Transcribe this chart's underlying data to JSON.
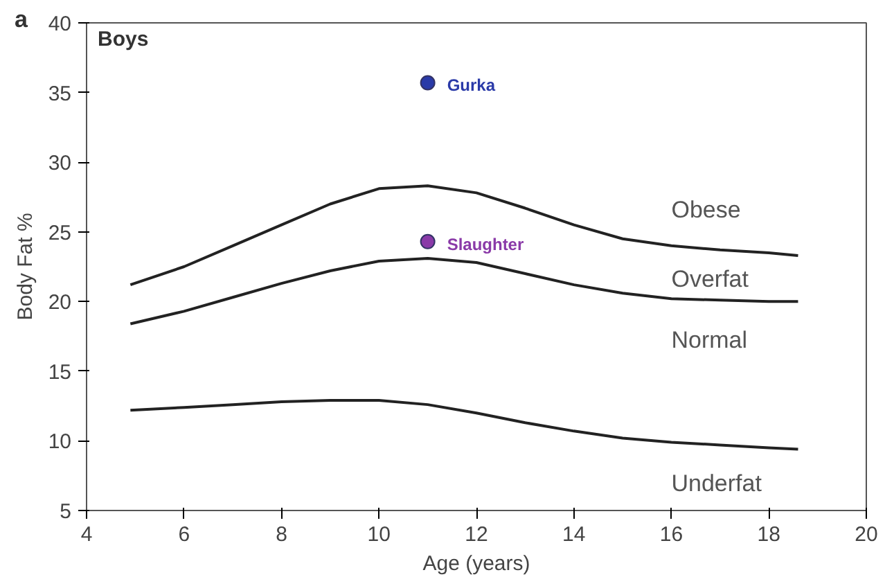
{
  "chart_data": {
    "type": "line",
    "xlabel": "Age (years)",
    "ylabel": "Body Fat %",
    "xlim": [
      4,
      20
    ],
    "xticks": [
      4,
      6,
      8,
      10,
      12,
      14,
      16,
      18,
      20
    ],
    "ylim": [
      5,
      40
    ],
    "yticks": [
      5,
      10,
      15,
      20,
      25,
      30,
      35,
      40
    ],
    "grid": false,
    "series": [
      {
        "color": "#222222",
        "x": [
          4.9,
          6,
          7,
          8,
          9,
          10,
          11,
          12,
          13,
          14,
          15,
          16,
          17,
          18,
          18.6
        ],
        "values": [
          21.2,
          22.5,
          24,
          25.5,
          27,
          28.1,
          28.3,
          27.8,
          26.7,
          25.5,
          24.5,
          24,
          23.7,
          23.5,
          23.3
        ]
      },
      {
        "color": "#222222",
        "x": [
          4.9,
          6,
          7,
          8,
          9,
          10,
          11,
          12,
          13,
          14,
          15,
          16,
          17,
          18,
          18.6
        ],
        "values": [
          18.4,
          19.3,
          20.3,
          21.3,
          22.2,
          22.9,
          23.1,
          22.8,
          22,
          21.2,
          20.6,
          20.2,
          20.1,
          20,
          20
        ]
      },
      {
        "color": "#222222",
        "x": [
          4.9,
          6,
          7,
          8,
          9,
          10,
          11,
          12,
          13,
          14,
          15,
          16,
          17,
          18,
          18.6
        ],
        "values": [
          12.2,
          12.4,
          12.6,
          12.8,
          12.9,
          12.9,
          12.6,
          12,
          11.3,
          10.7,
          10.2,
          9.9,
          9.7,
          9.5,
          9.4
        ]
      },
      {
        "type": "scatter",
        "name": "Gurka",
        "color": "#2a3aa8",
        "x": [
          11
        ],
        "values": [
          35.7
        ]
      },
      {
        "type": "scatter",
        "name": "Slaughter",
        "color": "#8a3aa8",
        "x": [
          11
        ],
        "values": [
          24.3
        ]
      }
    ],
    "annotations": [
      "a",
      "Boys",
      "Obese",
      "Overfat",
      "Normal",
      "Underfat"
    ]
  }
}
